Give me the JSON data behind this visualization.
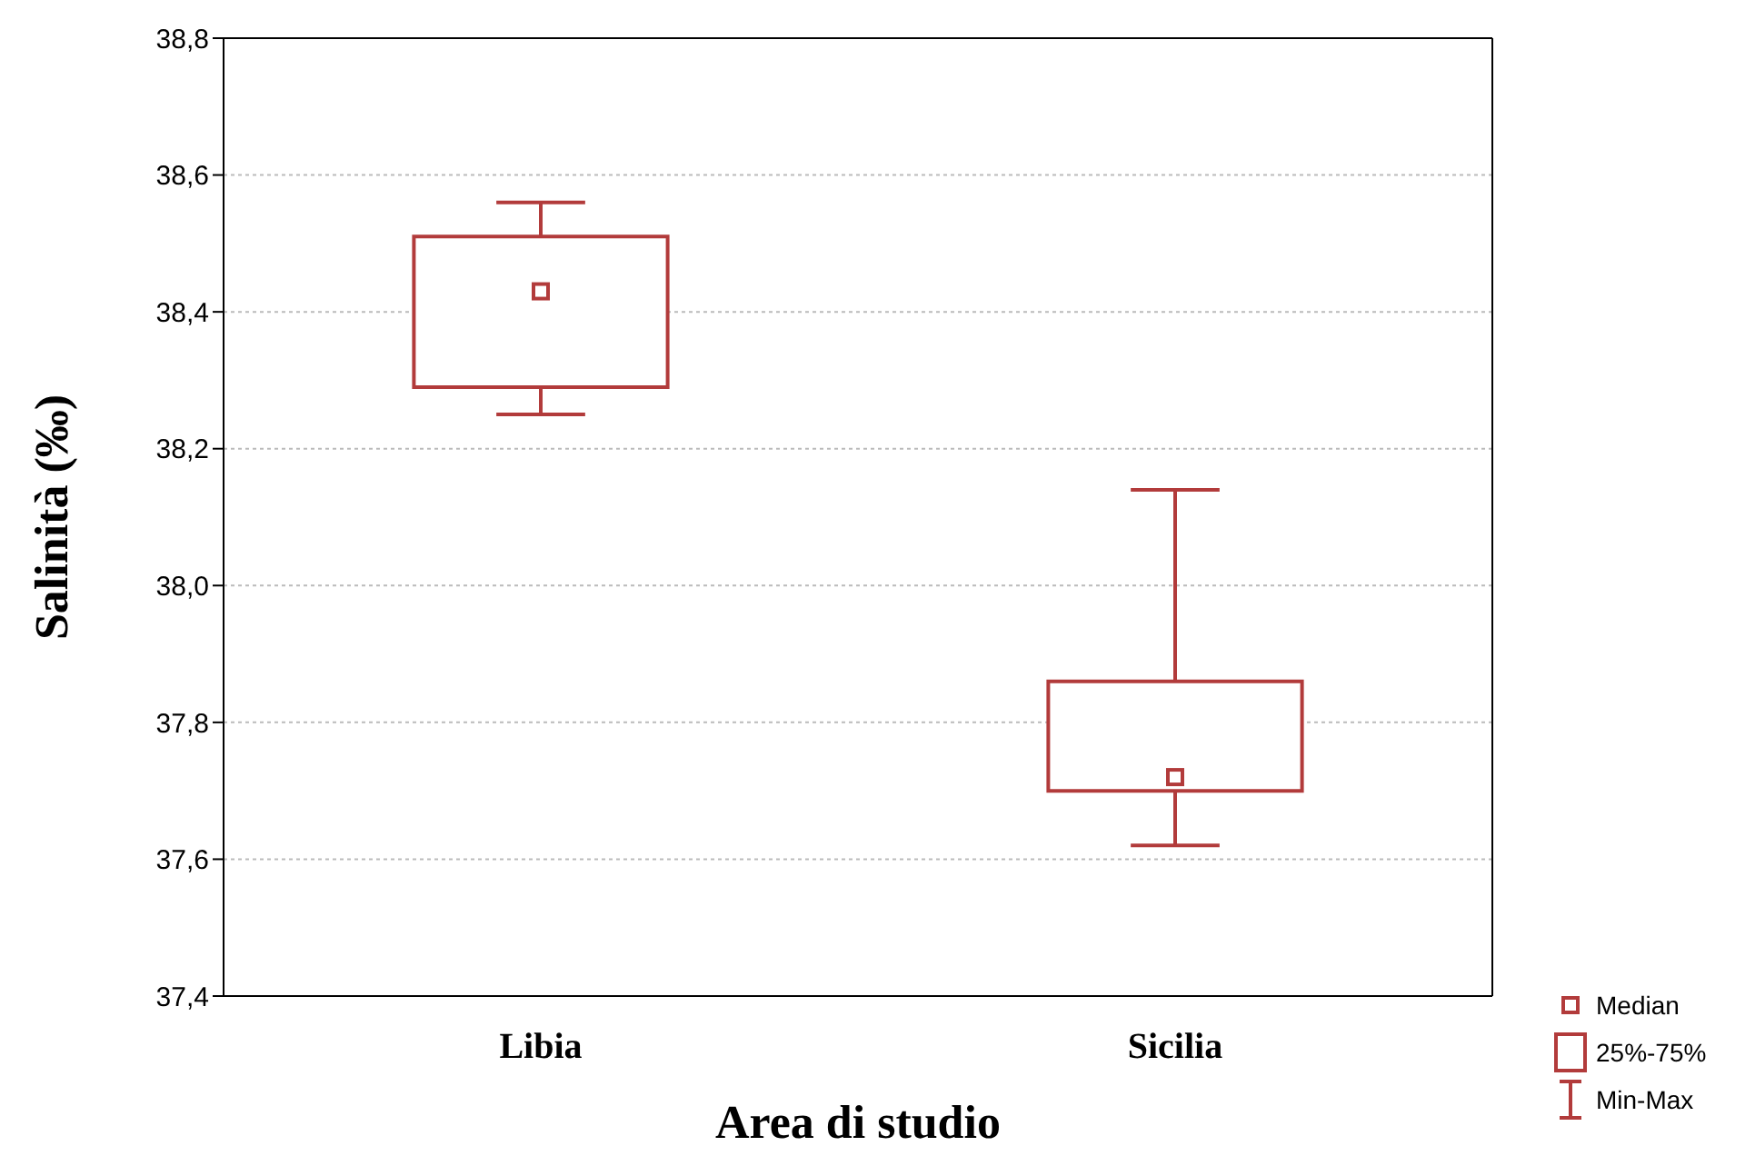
{
  "chart_data": {
    "type": "box",
    "xlabel": "Area di studio",
    "ylabel": "Salinità   (‰)",
    "categories": [
      "Libia",
      "Sicilia"
    ],
    "color": "#b23b3b",
    "boxes": [
      {
        "low": 38.25,
        "q1": 38.29,
        "median": 38.43,
        "q3": 38.51,
        "high": 38.56
      },
      {
        "low": 37.62,
        "q1": 37.7,
        "median": 37.72,
        "q3": 37.86,
        "high": 38.14
      }
    ],
    "ylim": [
      37.4,
      38.8
    ],
    "yticks": [
      {
        "value": 37.4,
        "label": "37,4"
      },
      {
        "value": 37.6,
        "label": "37,6"
      },
      {
        "value": 37.8,
        "label": "37,8"
      },
      {
        "value": 38.0,
        "label": "38,0"
      },
      {
        "value": 38.2,
        "label": "38,2"
      },
      {
        "value": 38.4,
        "label": "38,4"
      },
      {
        "value": 38.6,
        "label": "38,6"
      },
      {
        "value": 38.8,
        "label": "38,8"
      }
    ],
    "grid": "y",
    "annotations": [
      "Median",
      "25%-75%",
      "Min-Max"
    ]
  }
}
